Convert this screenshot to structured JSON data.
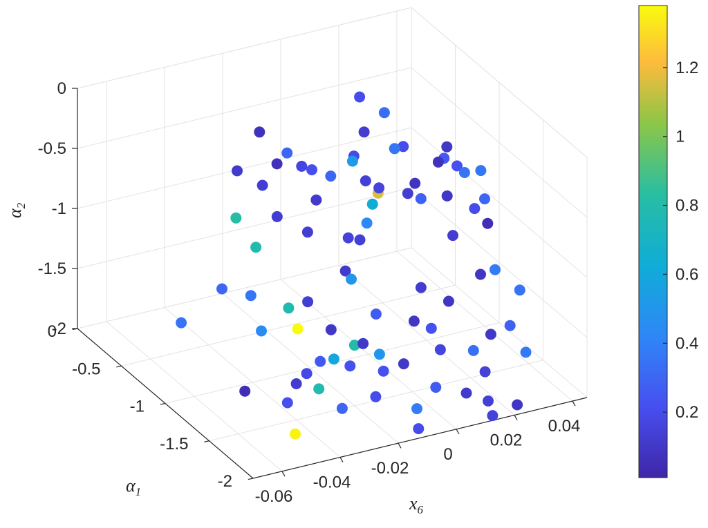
{
  "chart_data": {
    "type": "scatter3d",
    "axes": {
      "x": {
        "label": "x",
        "label_sub": "6",
        "ticks": [
          "-0.06",
          "-0.04",
          "-0.02",
          "0",
          "0.02",
          "0.04"
        ],
        "lim": [
          -0.07,
          0.045
        ]
      },
      "y": {
        "label": "α",
        "label_sub": "1",
        "ticks": [
          "0",
          "-0.5",
          "-1",
          "-1.5",
          "-2"
        ],
        "lim": [
          -2,
          0
        ]
      },
      "z": {
        "label": "α",
        "label_sub": "2",
        "ticks": [
          "0",
          "-0.5",
          "-1",
          "-1.5",
          "-2"
        ],
        "lim": [
          -2,
          0
        ]
      }
    },
    "colorbar": {
      "ticks": [
        "1.2",
        "1",
        "0.8",
        "0.6",
        "0.4",
        "0.2"
      ],
      "tick_values": [
        1.2,
        1.0,
        0.8,
        0.6,
        0.4,
        0.2
      ],
      "lim": [
        0.01,
        1.38
      ],
      "colormap": "parula"
    },
    "grid": true,
    "points": [
      [
        -0.052,
        -1.21,
        -0.43,
        0.82
      ],
      [
        -0.052,
        -1.05,
        -1.12,
        0.3
      ],
      [
        -0.063,
        -0.95,
        -1.4,
        0.35
      ],
      [
        -0.049,
        -1.28,
        -1.05,
        0.36
      ],
      [
        -0.04,
        -1.04,
        -0.85,
        0.78
      ],
      [
        -0.039,
        -1.74,
        -1.37,
        0.25
      ],
      [
        -0.028,
        -1.12,
        -1.55,
        1.38
      ],
      [
        -0.026,
        -1.56,
        -1.95,
        0.3
      ],
      [
        -0.023,
        -1.55,
        -1.62,
        0.22
      ],
      [
        -0.021,
        -1.3,
        -1.73,
        0.59
      ],
      [
        -0.019,
        -1.71,
        -1.8,
        0.2
      ],
      [
        -0.016,
        -1.37,
        -1.6,
        0.8
      ],
      [
        -0.031,
        -1.46,
        -1.82,
        0.79
      ],
      [
        -0.049,
        -1.4,
        -1.27,
        0.45
      ],
      [
        -0.036,
        -1.28,
        -1.23,
        0.78
      ],
      [
        -0.047,
        -1.72,
        -1.94,
        1.36
      ],
      [
        -0.04,
        -1.4,
        -1.92,
        0.21
      ],
      [
        -0.008,
        -1.39,
        -1.71,
        0.5
      ],
      [
        -0.012,
        -1.2,
        -1.18,
        0.5
      ],
      [
        -0.01,
        -1.1,
        -0.91,
        0.15
      ],
      [
        -0.003,
        -1.08,
        -0.84,
        0.43
      ],
      [
        -0.005,
        -1.21,
        -0.59,
        0.62
      ],
      [
        -0.004,
        -0.95,
        -0.4,
        0.52
      ],
      [
        -0.001,
        -1.0,
        -0.55,
        0.14
      ],
      [
        0.003,
        -1.02,
        -0.62,
        0.16
      ],
      [
        0.009,
        -1.15,
        -0.62,
        0.13
      ],
      [
        0.0,
        -0.95,
        -0.18,
        0.12
      ],
      [
        0.006,
        -0.7,
        -0.08,
        0.2
      ],
      [
        0.012,
        -0.9,
        -0.42,
        0.36
      ],
      [
        0.013,
        -0.75,
        -0.22,
        0.33
      ],
      [
        0.006,
        -0.91,
        -0.75,
        1.16
      ],
      [
        0.012,
        -1.2,
        -0.65,
        0.28
      ],
      [
        0.018,
        -1.3,
        -0.6,
        0.1
      ],
      [
        0.024,
        -1.3,
        -0.44,
        0.35
      ],
      [
        0.029,
        -1.32,
        -0.44,
        0.36
      ],
      [
        0.016,
        -1.0,
        -0.67,
        0.08
      ],
      [
        0.021,
        -1.1,
        -0.46,
        0.07
      ],
      [
        0.026,
        -1.0,
        -0.52,
        0.25
      ],
      [
        0.03,
        -0.9,
        -0.51,
        0.1
      ],
      [
        0.032,
        -0.95,
        -0.65,
        0.22
      ],
      [
        0.035,
        -1.05,
        -0.96,
        0.2
      ],
      [
        0.038,
        -1.1,
        -1.07,
        0.05
      ],
      [
        0.04,
        -1.0,
        -0.94,
        0.3
      ],
      [
        0.036,
        -1.25,
        -1.35,
        0.38
      ],
      [
        0.04,
        -1.4,
        -1.45,
        0.35
      ],
      [
        0.027,
        -1.5,
        -1.68,
        0.1
      ],
      [
        0.022,
        -1.6,
        -1.9,
        0.15
      ],
      [
        0.017,
        -1.8,
        -1.99,
        0.14
      ],
      [
        0.024,
        -1.9,
        -2.0,
        0.09
      ],
      [
        0.014,
        -1.95,
        -2.0,
        0.15
      ],
      [
        0.018,
        -1.6,
        -1.7,
        0.34
      ],
      [
        0.008,
        -1.45,
        -1.55,
        0.22
      ],
      [
        -0.003,
        -1.5,
        -1.75,
        0.1
      ],
      [
        0.003,
        -1.42,
        -1.48,
        0.09
      ],
      [
        -0.008,
        -1.35,
        -1.4,
        0.26
      ],
      [
        0.028,
        -1.35,
        -1.28,
        0.09
      ],
      [
        0.023,
        -1.2,
        -1.02,
        0.12
      ],
      [
        0.009,
        -1.3,
        -1.31,
        0.12
      ],
      [
        0.014,
        -1.45,
        -1.36,
        0.09
      ],
      [
        0.006,
        -1.62,
        -1.61,
        0.16
      ],
      [
        -0.014,
        -1.2,
        -1.1,
        0.11
      ],
      [
        -0.024,
        -1.1,
        -0.78,
        0.13
      ],
      [
        -0.033,
        -1.05,
        -0.63,
        0.13
      ],
      [
        -0.018,
        -1.0,
        -0.61,
        0.11
      ],
      [
        -0.02,
        -0.9,
        -0.38,
        0.17
      ],
      [
        -0.027,
        -0.85,
        -0.35,
        0.06
      ],
      [
        -0.035,
        -0.95,
        -0.42,
        0.13
      ],
      [
        -0.041,
        -0.86,
        -0.32,
        0.11
      ],
      [
        -0.03,
        -0.75,
        -0.13,
        0.07
      ],
      [
        -0.022,
        -0.8,
        -0.32,
        0.3
      ],
      [
        -0.015,
        -0.85,
        -0.47,
        0.21
      ],
      [
        -0.01,
        -0.9,
        -0.52,
        0.3
      ],
      [
        0.001,
        -0.8,
        -0.48,
        0.19
      ],
      [
        -0.006,
        -1.1,
        -0.95,
        0.14
      ],
      [
        0.018,
        -0.8,
        -0.5,
        0.2
      ],
      [
        -0.03,
        -1.3,
        -1.2,
        0.13
      ],
      [
        -0.025,
        -1.4,
        -1.4,
        0.1
      ],
      [
        -0.017,
        -1.5,
        -1.5,
        0.1
      ],
      [
        -0.013,
        -1.6,
        -1.69,
        0.22
      ],
      [
        0.002,
        -1.7,
        -1.85,
        0.26
      ],
      [
        0.011,
        -1.75,
        -1.92,
        0.11
      ],
      [
        -0.006,
        -1.75,
        -1.95,
        0.38
      ],
      [
        -0.01,
        -1.9,
        -2.0,
        0.2
      ],
      [
        0.03,
        -1.62,
        -1.55,
        0.28
      ],
      [
        0.033,
        -1.7,
        -1.74,
        0.37
      ],
      [
        -0.058,
        -1.51,
        -1.65,
        0.05
      ],
      [
        -0.043,
        -1.6,
        -1.62,
        0.12
      ],
      [
        -0.037,
        -1.52,
        -1.62,
        0.18
      ]
    ]
  }
}
